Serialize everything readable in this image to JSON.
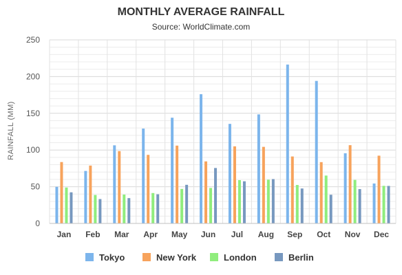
{
  "chart_data": {
    "type": "bar",
    "title": "MONTHLY AVERAGE RAINFALL",
    "subtitle": "Source: WorldClimate.com",
    "xlabel": "",
    "ylabel": "RAINFALL (MM)",
    "ylim": [
      0,
      250
    ],
    "yticks": [
      0,
      50,
      100,
      150,
      200,
      250
    ],
    "grid": true,
    "legend_position": "bottom",
    "categories": [
      "Jan",
      "Feb",
      "Mar",
      "Apr",
      "May",
      "Jun",
      "Jul",
      "Aug",
      "Sep",
      "Oct",
      "Nov",
      "Dec"
    ],
    "series": [
      {
        "name": "Tokyo",
        "color": "#7cb5ec",
        "values": [
          49.9,
          71.5,
          106.4,
          129.2,
          144.0,
          176.0,
          135.6,
          148.5,
          216.4,
          194.1,
          95.6,
          54.4
        ]
      },
      {
        "name": "New York",
        "color": "#f7a35c",
        "values": [
          83.6,
          78.8,
          98.5,
          93.4,
          106.0,
          84.5,
          105.0,
          104.3,
          91.2,
          83.5,
          106.6,
          92.3
        ]
      },
      {
        "name": "London",
        "color": "#90ed7d",
        "values": [
          48.9,
          38.8,
          39.3,
          41.4,
          47.0,
          48.3,
          59.0,
          59.6,
          52.4,
          65.2,
          59.3,
          51.2
        ]
      },
      {
        "name": "Berlin",
        "color": "#7798bf",
        "values": [
          42.4,
          33.2,
          34.5,
          39.7,
          52.6,
          75.5,
          57.4,
          60.4,
          47.6,
          39.1,
          46.8,
          51.1
        ]
      }
    ]
  }
}
